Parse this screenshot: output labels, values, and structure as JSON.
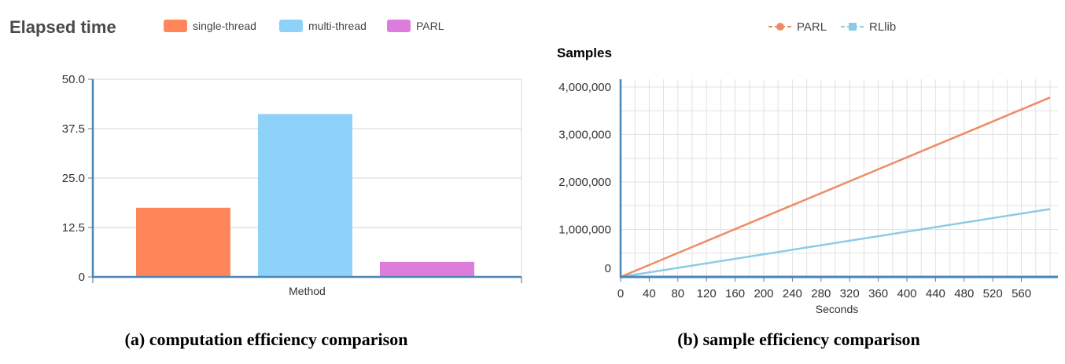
{
  "chart_data": [
    {
      "type": "bar",
      "title": "Elapsed time",
      "xlabel": "Method",
      "ylabel": "",
      "ylim": [
        0,
        50
      ],
      "yticks": [
        "0",
        "12.5",
        "25.0",
        "37.5",
        "50.0"
      ],
      "ytick_values": [
        0,
        12.5,
        25,
        37.5,
        50
      ],
      "legend_position": "top",
      "grid": true,
      "series": [
        {
          "name": "single-thread",
          "value": 17.5,
          "color": "#fe8659"
        },
        {
          "name": "multi-thread",
          "value": 41.2,
          "color": "#8ed1f9"
        },
        {
          "name": "PARL",
          "value": 3.8,
          "color": "#dc7cdb"
        }
      ]
    },
    {
      "type": "line",
      "title": "Samples",
      "xlabel": "Seconds",
      "ylabel": "",
      "xlim": [
        0,
        600
      ],
      "ylim": [
        0,
        4000000
      ],
      "xticks": [
        "0",
        "40",
        "80",
        "120",
        "160",
        "200",
        "240",
        "280",
        "320",
        "360",
        "400",
        "440",
        "480",
        "520",
        "560"
      ],
      "xtick_values": [
        0,
        40,
        80,
        120,
        160,
        200,
        240,
        280,
        320,
        360,
        400,
        440,
        480,
        520,
        560
      ],
      "yticks": [
        "0",
        "1,000,000",
        "2,000,000",
        "3,000,000",
        "4,000,000"
      ],
      "ytick_values": [
        0,
        1000000,
        2000000,
        3000000,
        4000000
      ],
      "legend_position": "top",
      "grid": true,
      "series": [
        {
          "name": "PARL",
          "x": [
            0,
            600
          ],
          "y": [
            0,
            3780000
          ],
          "color": "#ee8b64"
        },
        {
          "name": "RLlib",
          "x": [
            0,
            600
          ],
          "y": [
            0,
            1430000
          ],
          "color": "#8ccbe5"
        }
      ]
    }
  ],
  "captions": {
    "a": "(a) computation efficiency comparison",
    "b": "(b) sample efficiency comparison"
  }
}
